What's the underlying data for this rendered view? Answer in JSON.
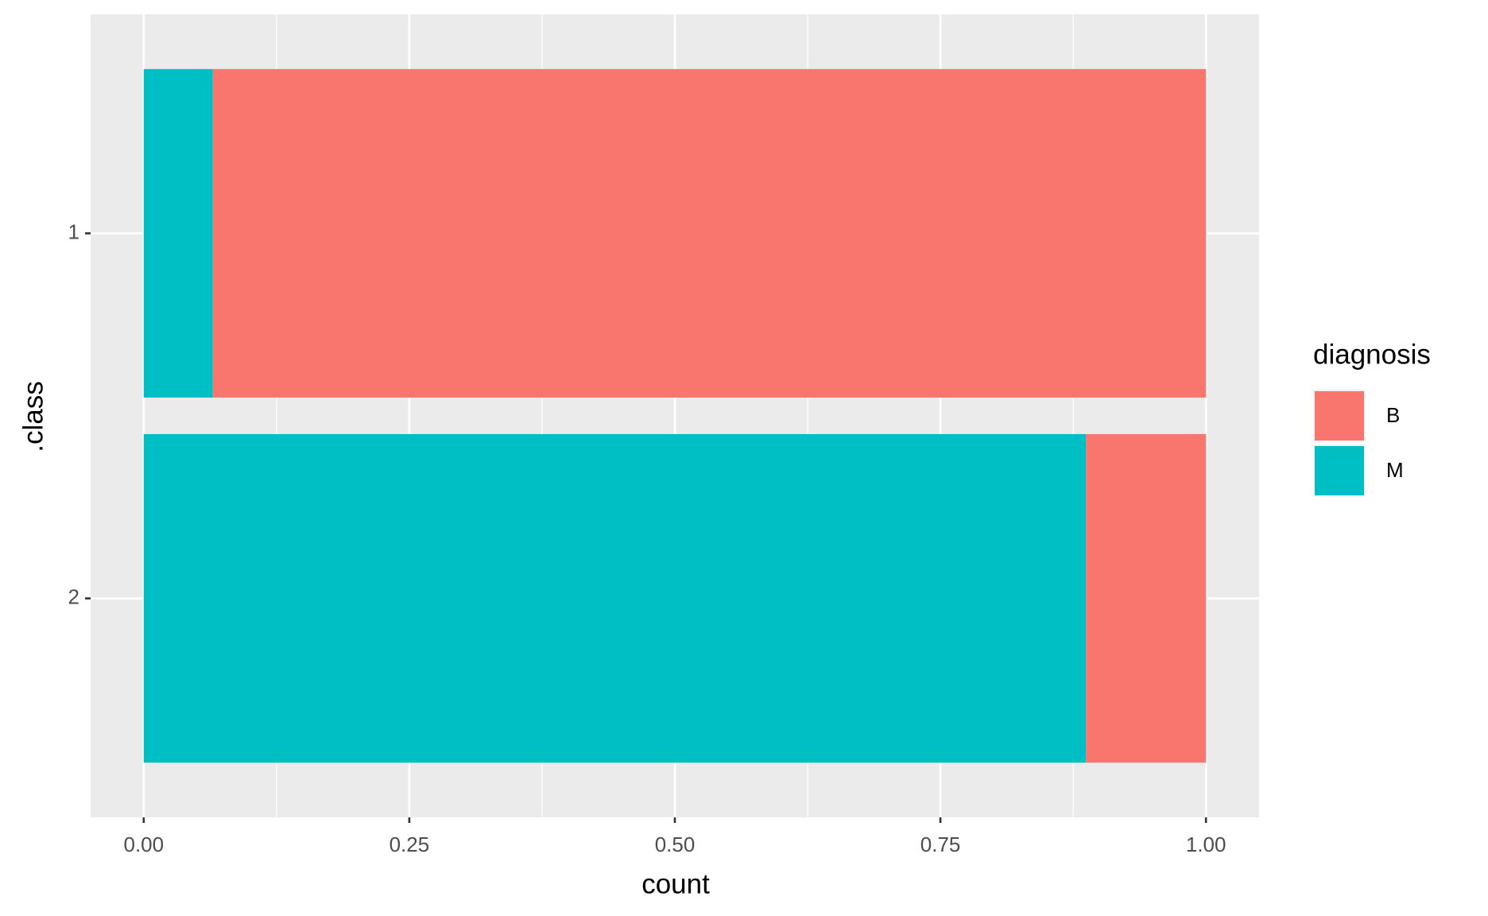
{
  "chart_data": {
    "type": "stacked_barh",
    "xlabel": "count",
    "ylabel": ".class",
    "categories": [
      "1",
      "2"
    ],
    "series": [
      {
        "name": "B",
        "color": "#F8766D",
        "values": [
          0.935,
          0.113
        ]
      },
      {
        "name": "M",
        "color": "#00BFC4",
        "values": [
          0.065,
          0.887
        ]
      }
    ],
    "legend_title": "diagnosis",
    "legend": "right",
    "xlim": [
      -0.05,
      1.05
    ],
    "xticks": [
      {
        "value": 0,
        "label": "0.00"
      },
      0.25,
      {
        "value": 0.5,
        "label": "0.50"
      },
      0.75,
      {
        "value": 1,
        "label": "1.00"
      }
    ],
    "xminor": [
      0.125,
      0.375,
      0.625,
      0.875
    ],
    "grid": true
  }
}
